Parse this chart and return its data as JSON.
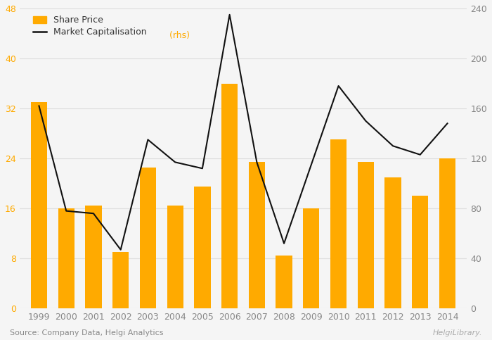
{
  "years": [
    1999,
    2000,
    2001,
    2002,
    2003,
    2004,
    2005,
    2006,
    2007,
    2008,
    2009,
    2010,
    2011,
    2012,
    2013,
    2014
  ],
  "share_price": [
    33.0,
    16.0,
    16.5,
    9.0,
    22.5,
    16.5,
    19.5,
    36.0,
    23.5,
    8.5,
    16.0,
    27.0,
    23.5,
    21.0,
    18.0,
    24.0
  ],
  "market_cap": [
    162,
    78,
    76,
    47,
    135,
    117,
    112,
    235,
    117,
    52,
    115,
    178,
    150,
    130,
    123,
    148
  ],
  "bar_color": "#FFAA00",
  "line_color": "#111111",
  "background_color": "#F5F5F5",
  "ylim_left": [
    0,
    48
  ],
  "ylim_right": [
    0,
    240
  ],
  "yticks_left": [
    0,
    8,
    16,
    24,
    32,
    40,
    48
  ],
  "yticks_right": [
    0,
    40,
    80,
    120,
    160,
    200,
    240
  ],
  "legend_share_price": "Share Price",
  "legend_market_cap_main": "Market Capitalisation",
  "legend_market_cap_rhs": " (rhs)",
  "source_text": "Source: Company Data, Helgi Analytics",
  "helgi_text": "HelgiLibrary.",
  "tick_color_left": "#FFAA00",
  "tick_color_right": "#888888",
  "tick_color_x": "#888888",
  "grid_color": "#DDDDDD",
  "label_fontsize": 9,
  "tick_fontsize": 9,
  "source_fontsize": 8,
  "bar_width": 0.6
}
